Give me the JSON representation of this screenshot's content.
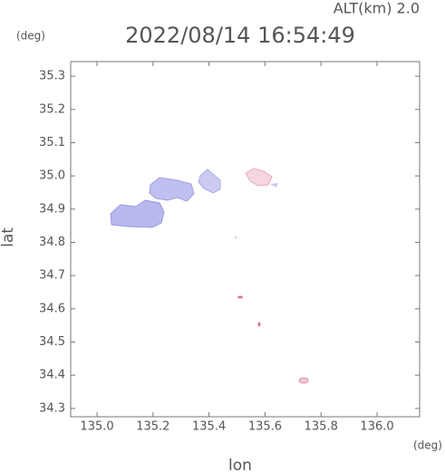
{
  "chart_data": {
    "type": "map",
    "title": "2022/08/14 16:54:49",
    "altitude": "ALT(km)  2.0",
    "y_unit": "(deg)",
    "x_unit": "(deg)",
    "xlabel": "lon",
    "ylabel": "lat",
    "xlim": [
      134.906,
      136.152
    ],
    "ylim": [
      34.275,
      35.344
    ],
    "xticks": [
      {
        "value": 135,
        "label": "135.0"
      },
      135.2,
      135.4,
      135.6,
      135.8,
      {
        "value": 136,
        "label": "136.0"
      }
    ],
    "yticks": [
      34.3,
      34.4,
      34.5,
      34.6,
      34.7,
      34.8,
      34.9,
      {
        "value": 35,
        "label": "35.0"
      },
      35.1,
      35.2,
      35.3
    ]
  }
}
